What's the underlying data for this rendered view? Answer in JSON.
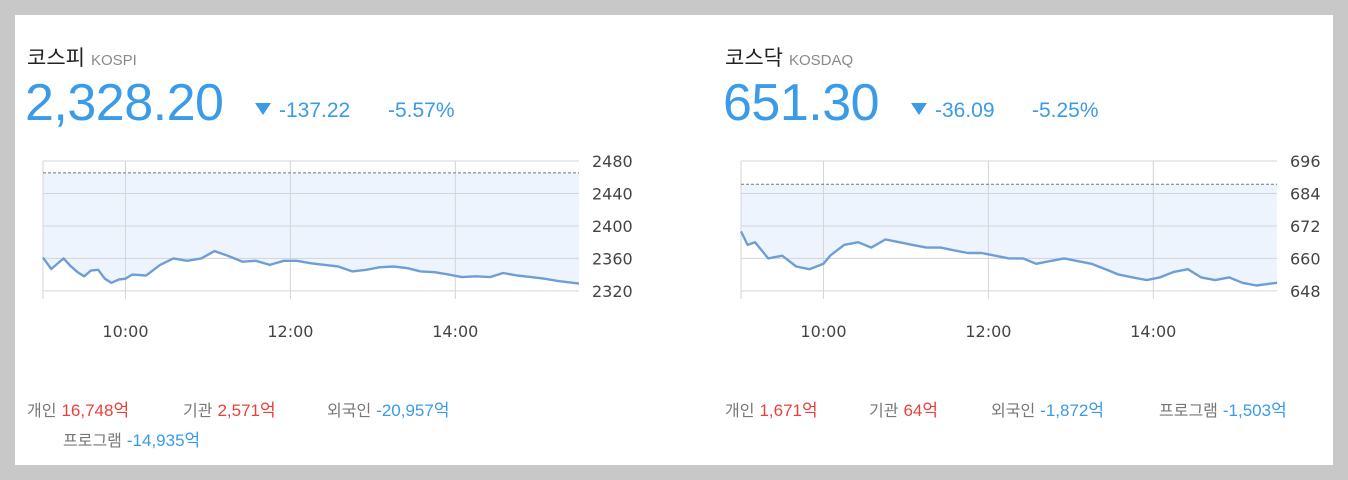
{
  "colors": {
    "down": "#3a9be8",
    "up": "#e8413c",
    "line": "#6f9ed6",
    "fill": "#eef4fd",
    "grid": "#d4d4d4",
    "ref": "#777777"
  },
  "kospi": {
    "name": "코스피",
    "code": "KOSPI",
    "price": "2,328.20",
    "change": "-137.22",
    "change_pct": "-5.57%",
    "flows": [
      {
        "label": "개인",
        "value": "16,748억",
        "dir": "pos"
      },
      {
        "label": "기관",
        "value": "2,571억",
        "dir": "pos"
      },
      {
        "label": "외국인",
        "value": "-20,957억",
        "dir": "neg"
      },
      {
        "label": "프로그램",
        "value": "-14,935억",
        "dir": "neg"
      }
    ]
  },
  "kosdaq": {
    "name": "코스닥",
    "code": "KOSDAQ",
    "price": "651.30",
    "change": "-36.09",
    "change_pct": "-5.25%",
    "flows": [
      {
        "label": "개인",
        "value": "1,671억",
        "dir": "pos"
      },
      {
        "label": "기관",
        "value": "64억",
        "dir": "pos"
      },
      {
        "label": "외국인",
        "value": "-1,872억",
        "dir": "neg"
      },
      {
        "label": "프로그램",
        "value": "-1,503억",
        "dir": "neg"
      }
    ]
  },
  "chart_data": [
    {
      "type": "area",
      "index": "KOSPI",
      "x_ticks": [
        "10:00",
        "12:00",
        "14:00"
      ],
      "x_tick_hours": [
        10,
        12,
        14
      ],
      "x_range_hours": [
        9,
        15.5
      ],
      "y_ticks": [
        2480,
        2440,
        2400,
        2360,
        2320
      ],
      "ylim": [
        2310,
        2480
      ],
      "prev_close": 2465.42,
      "grid": true,
      "series": [
        {
          "x_hours": [
            9.0,
            9.1,
            9.25,
            9.33,
            9.42,
            9.5,
            9.58,
            9.67,
            9.75,
            9.83,
            9.92,
            10.0,
            10.08,
            10.25,
            10.42,
            10.58,
            10.75,
            10.92,
            11.08,
            11.25,
            11.42,
            11.58,
            11.75,
            11.92,
            12.08,
            12.25,
            12.42,
            12.58,
            12.75,
            12.92,
            13.08,
            13.25,
            13.42,
            13.58,
            13.75,
            13.92,
            14.08,
            14.25,
            14.42,
            14.58,
            14.75,
            14.92,
            15.08,
            15.25,
            15.5
          ],
          "values": [
            2361,
            2347,
            2360,
            2351,
            2343,
            2338,
            2345,
            2346,
            2335,
            2330,
            2334,
            2335,
            2340,
            2339,
            2352,
            2360,
            2357,
            2360,
            2369,
            2363,
            2356,
            2357,
            2352,
            2357,
            2357,
            2354,
            2352,
            2350,
            2344,
            2346,
            2349,
            2350,
            2348,
            2344,
            2343,
            2340,
            2337,
            2338,
            2337,
            2342,
            2339,
            2337,
            2335,
            2332,
            2329
          ]
        }
      ]
    },
    {
      "type": "area",
      "index": "KOSDAQ",
      "x_ticks": [
        "10:00",
        "12:00",
        "14:00"
      ],
      "x_tick_hours": [
        10,
        12,
        14
      ],
      "x_range_hours": [
        9,
        15.5
      ],
      "y_ticks": [
        696,
        684,
        672,
        660,
        648
      ],
      "ylim": [
        645,
        696
      ],
      "prev_close": 687.39,
      "grid": true,
      "series": [
        {
          "x_hours": [
            9.0,
            9.08,
            9.17,
            9.33,
            9.5,
            9.67,
            9.83,
            10.0,
            10.08,
            10.25,
            10.42,
            10.58,
            10.75,
            10.92,
            11.08,
            11.25,
            11.42,
            11.58,
            11.75,
            11.92,
            12.08,
            12.25,
            12.42,
            12.58,
            12.75,
            12.92,
            13.08,
            13.25,
            13.42,
            13.58,
            13.75,
            13.92,
            14.08,
            14.25,
            14.42,
            14.58,
            14.75,
            14.92,
            15.08,
            15.25,
            15.5
          ],
          "values": [
            670,
            665,
            666,
            660,
            661,
            657,
            656,
            658,
            661,
            665,
            666,
            664,
            667,
            666,
            665,
            664,
            664,
            663,
            662,
            662,
            661,
            660,
            660,
            658,
            659,
            660,
            659,
            658,
            656,
            654,
            653,
            652,
            653,
            655,
            656,
            653,
            652,
            653,
            651,
            650,
            651
          ]
        }
      ]
    }
  ]
}
